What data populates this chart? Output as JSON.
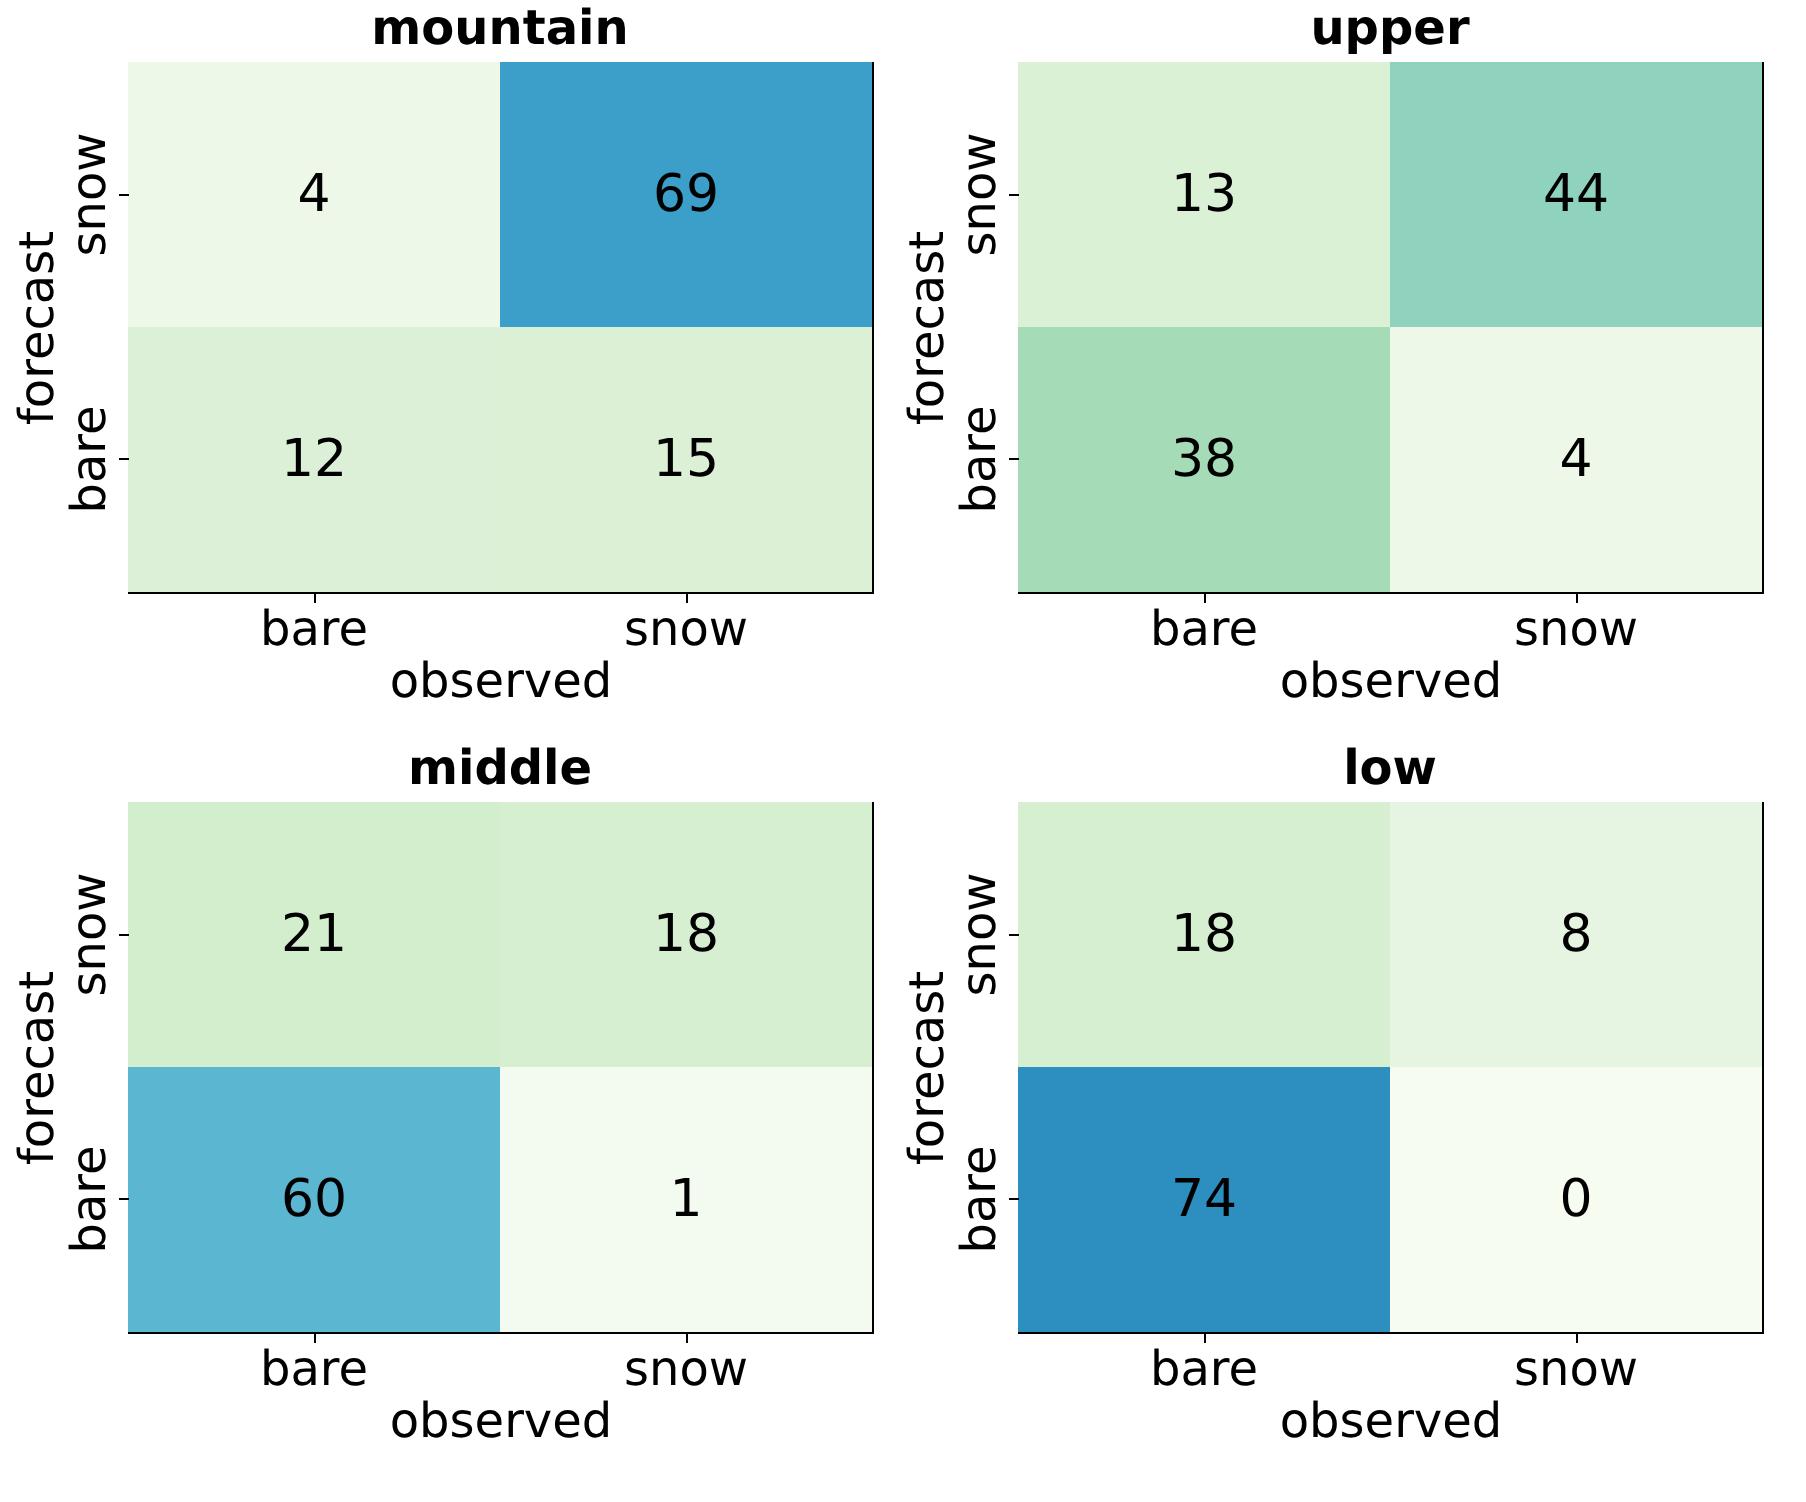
{
  "chart_data": [
    {
      "type": "heatmap",
      "title": "mountain",
      "xlabel": "observed",
      "ylabel": "forecast",
      "categories": [
        "bare",
        "snow"
      ],
      "y_categories": [
        "snow",
        "bare"
      ],
      "cells": [
        [
          4,
          69
        ],
        [
          12,
          15
        ]
      ],
      "colors": [
        [
          "#edf8e8",
          "#3c9fc9"
        ],
        [
          "#dcf0d7",
          "#dbf0d5"
        ]
      ],
      "data_labels": true,
      "grid": false
    },
    {
      "type": "heatmap",
      "title": "upper",
      "xlabel": "observed",
      "ylabel": "forecast",
      "categories": [
        "bare",
        "snow"
      ],
      "y_categories": [
        "snow",
        "bare"
      ],
      "cells": [
        [
          13,
          44
        ],
        [
          38,
          4
        ]
      ],
      "colors": [
        [
          "#dbf1d6",
          "#8fd3bf"
        ],
        [
          "#a5dbb6",
          "#edf8e8"
        ]
      ],
      "data_labels": true,
      "grid": false
    },
    {
      "type": "heatmap",
      "title": "middle",
      "xlabel": "observed",
      "ylabel": "forecast",
      "categories": [
        "bare",
        "snow"
      ],
      "y_categories": [
        "snow",
        "bare"
      ],
      "cells": [
        [
          21,
          18
        ],
        [
          60,
          1
        ]
      ],
      "colors": [
        [
          "#d3eecd",
          "#d7efd1"
        ],
        [
          "#5bb6d1",
          "#f3faef"
        ]
      ],
      "data_labels": true,
      "grid": false
    },
    {
      "type": "heatmap",
      "title": "low",
      "xlabel": "observed",
      "ylabel": "forecast",
      "categories": [
        "bare",
        "snow"
      ],
      "y_categories": [
        "snow",
        "bare"
      ],
      "cells": [
        [
          18,
          8
        ],
        [
          74,
          0
        ]
      ],
      "colors": [
        [
          "#d7efd1",
          "#e6f5e1"
        ],
        [
          "#2d8ec0",
          "#f7fcf0"
        ]
      ],
      "data_labels": true,
      "grid": false
    }
  ]
}
